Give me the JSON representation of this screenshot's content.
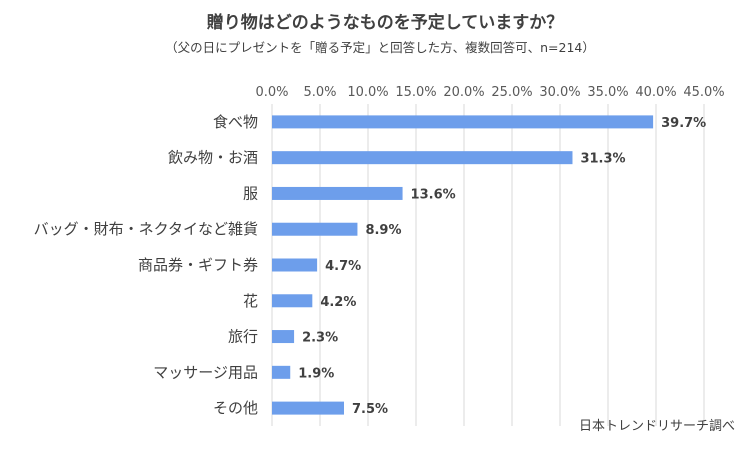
{
  "chart_data": {
    "type": "bar",
    "orientation": "horizontal",
    "title": "贈り物はどのようなものを予定していますか？",
    "subtitle": "（父の日にプレゼントを「贈る予定」と回答した方、複数回答可、n=214）",
    "categories": [
      "食べ物",
      "飲み物・お酒",
      "服",
      "バッグ・財布・ネクタイなど雑貨",
      "商品券・ギフト券",
      "花",
      "旅行",
      "マッサージ用品",
      "その他"
    ],
    "values": [
      39.7,
      31.3,
      13.6,
      8.9,
      4.7,
      4.2,
      2.3,
      1.9,
      7.5
    ],
    "data_labels": [
      "39.7%",
      "31.3%",
      "13.6%",
      "8.9%",
      "4.7%",
      "4.2%",
      "2.3%",
      "1.9%",
      "7.5%"
    ],
    "xlim": [
      0,
      45
    ],
    "ticks": [
      "0.0%",
      "5.0%",
      "10.0%",
      "15.0%",
      "20.0%",
      "25.0%",
      "30.0%",
      "35.0%",
      "40.0%",
      "45.0%"
    ],
    "tick_step": 5,
    "axis_position": "top",
    "grid": true,
    "bar_color": "#6d9eeb"
  },
  "source": "日本トレンドリサーチ調べ"
}
